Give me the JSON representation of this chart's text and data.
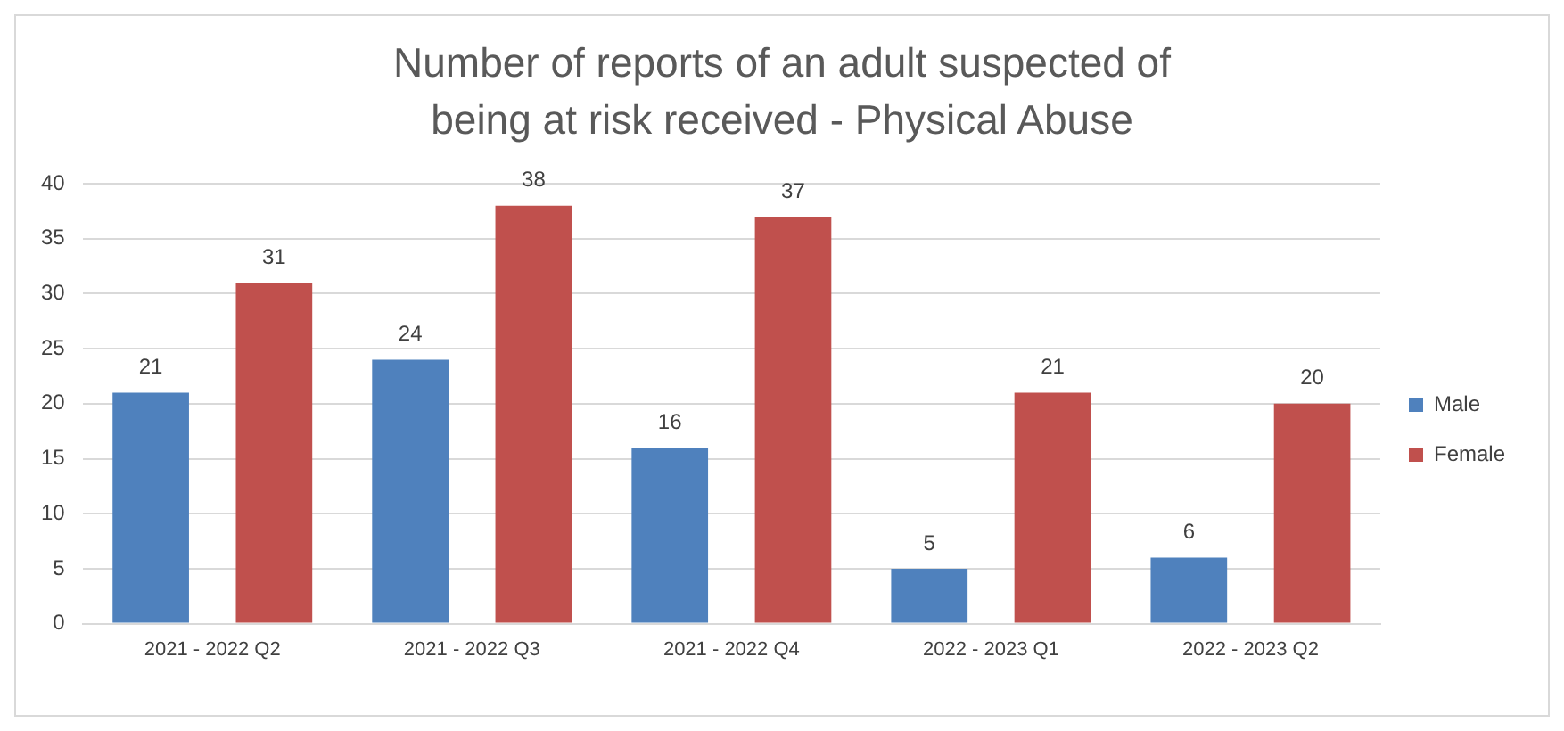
{
  "chart_data": {
    "type": "bar",
    "title": "Number of reports of an adult suspected of being at risk received - Physical Abuse",
    "categories": [
      "2021 - 2022 Q2",
      "2021 - 2022 Q3",
      "2021 - 2022 Q4",
      "2022 - 2023 Q1",
      "2022 - 2023 Q2"
    ],
    "series": [
      {
        "name": "Male",
        "color": "#4f81bd",
        "values": [
          21,
          24,
          16,
          5,
          6
        ]
      },
      {
        "name": "Female",
        "color": "#c0504d",
        "values": [
          31,
          38,
          37,
          21,
          20
        ]
      }
    ],
    "ylim": [
      0,
      40
    ],
    "yticks": [
      0,
      5,
      10,
      15,
      20,
      25,
      30,
      35,
      40
    ],
    "grid": "y",
    "legend": "right",
    "data_labels": true
  }
}
